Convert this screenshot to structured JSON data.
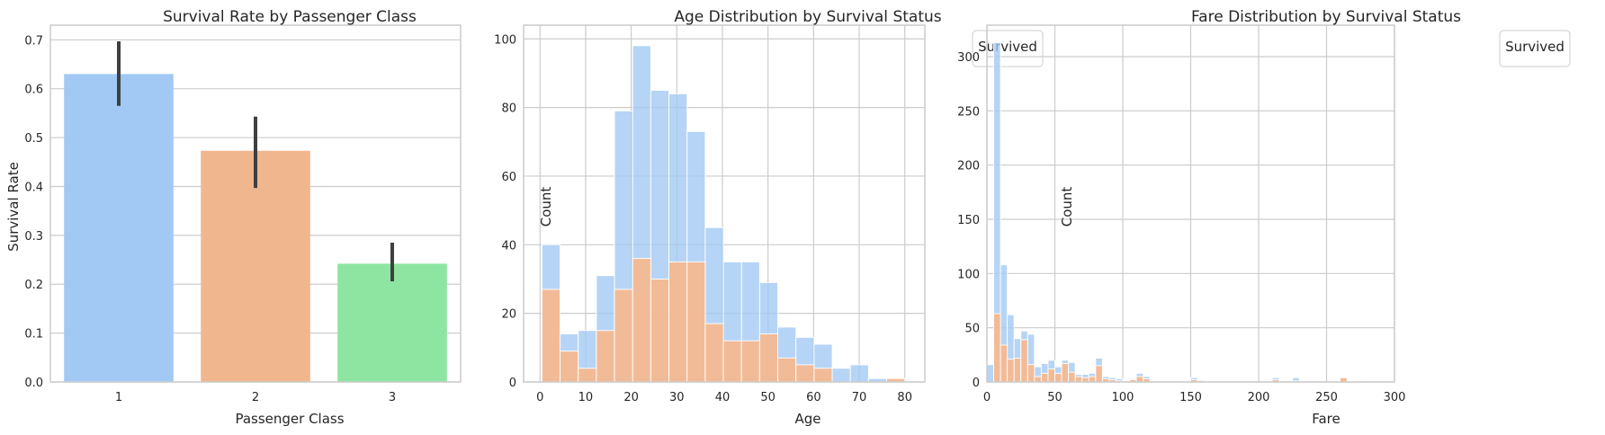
{
  "colors": {
    "blue": "#a1c9f4",
    "orange": "#ffb482",
    "green": "#8de5a1",
    "bar_orange": "#f0b78f",
    "error_bar": "#3f3f3f",
    "grid": "#cccccc",
    "spine": "#cccccc"
  },
  "chart_data": [
    {
      "type": "bar",
      "title": "Survival Rate by Passenger Class",
      "xlabel": "Passenger Class",
      "ylabel": "Survival Rate",
      "categories": [
        "1",
        "2",
        "3"
      ],
      "values": [
        0.63,
        0.473,
        0.242
      ],
      "ci_low": [
        0.565,
        0.397,
        0.206
      ],
      "ci_high": [
        0.697,
        0.543,
        0.285
      ],
      "ylim": [
        0,
        0.73
      ],
      "yticks": [
        "0.0",
        "0.1",
        "0.2",
        "0.3",
        "0.4",
        "0.5",
        "0.6",
        "0.7"
      ],
      "grid": true
    },
    {
      "type": "bar",
      "subtype": "histogram",
      "title": "Age Distribution by Survival Status",
      "xlabel": "Age",
      "ylabel": "Count",
      "legend_title": "Survived",
      "legend_position": "top-right",
      "bin_start": 0.42,
      "bin_width": 3.9789,
      "series": [
        {
          "values": [
            40,
            14,
            15,
            31,
            79,
            98,
            85,
            84,
            73,
            45,
            35,
            35,
            29,
            16,
            13,
            11,
            4,
            5,
            1,
            1
          ]
        },
        {
          "values": [
            27,
            9,
            4,
            15,
            27,
            36,
            30,
            35,
            35,
            17,
            12,
            12,
            14,
            7,
            5,
            4,
            0,
            0,
            0,
            1
          ]
        }
      ],
      "xlim": [
        -3.6,
        84.4
      ],
      "ylim": [
        0,
        104
      ],
      "xticks": [
        0,
        10,
        20,
        30,
        40,
        50,
        60,
        70,
        80
      ],
      "yticks": [
        0,
        20,
        40,
        60,
        80,
        100
      ],
      "grid": true
    },
    {
      "type": "bar",
      "subtype": "histogram",
      "title": "Fare Distribution by Survival Status",
      "xlabel": "Fare",
      "ylabel": "Count",
      "legend_title": "Survived",
      "legend_position": "top-right",
      "bin_start": 0,
      "bin_width": 5,
      "series": [
        {
          "values": [
            16,
            313,
            108,
            62,
            40,
            47,
            44,
            14,
            17,
            20,
            14,
            20,
            18,
            7,
            7,
            8,
            22,
            5,
            4,
            3,
            0,
            3,
            8,
            5,
            0,
            0,
            0,
            0,
            0,
            0,
            4,
            2,
            0,
            0,
            0,
            0,
            0,
            0,
            0,
            0,
            0,
            0,
            4,
            0,
            0,
            4,
            0,
            0,
            0,
            0,
            0,
            0,
            4,
            0,
            0,
            0,
            0,
            0,
            0,
            0
          ]
        },
        {
          "values": [
            0,
            63,
            34,
            21,
            22,
            39,
            16,
            5,
            8,
            12,
            8,
            17,
            9,
            5,
            4,
            5,
            15,
            3,
            2,
            1,
            0,
            2,
            5,
            3,
            0,
            0,
            0,
            0,
            0,
            0,
            2,
            1,
            0,
            0,
            0,
            0,
            0,
            0,
            0,
            0,
            0,
            0,
            2,
            0,
            0,
            1,
            0,
            0,
            0,
            0,
            0,
            0,
            4,
            0,
            0,
            0,
            0,
            0,
            0,
            0
          ]
        }
      ],
      "xlim": [
        0,
        300
      ],
      "ylim": [
        0,
        329
      ],
      "xticks": [
        0,
        50,
        100,
        150,
        200,
        250,
        300
      ],
      "yticks": [
        0,
        50,
        100,
        150,
        200,
        250,
        300
      ],
      "grid": true
    }
  ]
}
